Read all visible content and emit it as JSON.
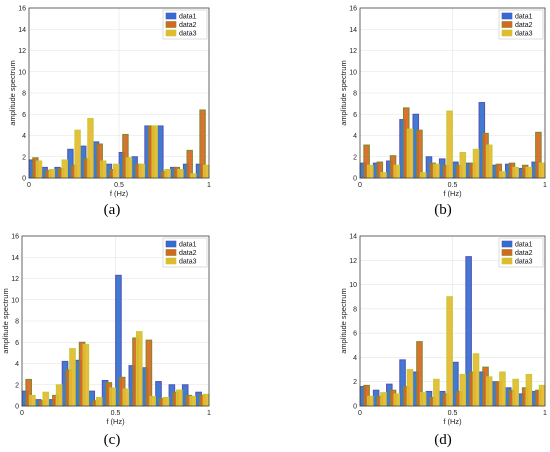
{
  "figure": {
    "panels": [
      {
        "caption": "(a)"
      },
      {
        "caption": "(b)"
      },
      {
        "caption": "(c)"
      },
      {
        "caption": "(d)"
      }
    ]
  },
  "colors": {
    "data1": "#2f6fcf",
    "data2": "#d9661f",
    "data3": "#e6b82e",
    "outline_purple": "#5b4fb5",
    "outline_olive": "#7b8a2a",
    "outline_yellowgreen": "#c2cc33"
  },
  "chart_data": [
    {
      "type": "bar",
      "panel": "(a)",
      "xlabel": "f (Hz)",
      "ylabel": "amplitude spectrum",
      "xlim": [
        0,
        1
      ],
      "ylim": [
        0,
        16
      ],
      "xticks": [
        "0",
        "0.5",
        "1"
      ],
      "yticks": [
        "0",
        "2",
        "4",
        "6",
        "8",
        "10",
        "12",
        "14",
        "16"
      ],
      "grid": true,
      "legend": {
        "placement": "top-right",
        "entries": [
          "data1",
          "data2",
          "data3"
        ]
      },
      "x": [
        0.0,
        0.075,
        0.15,
        0.225,
        0.3,
        0.375,
        0.45,
        0.525,
        0.6,
        0.675,
        0.75,
        0.825,
        0.9,
        0.975
      ],
      "series": [
        {
          "name": "data1",
          "values": [
            1.7,
            1.0,
            1.0,
            2.7,
            3.0,
            3.4,
            1.3,
            2.4,
            2.0,
            4.9,
            4.9,
            1.0,
            1.3,
            1.3
          ]
        },
        {
          "name": "data2",
          "values": [
            1.9,
            0.7,
            0.9,
            1.2,
            1.8,
            3.2,
            0.8,
            4.1,
            1.3,
            4.9,
            0.6,
            1.0,
            2.6,
            6.4
          ]
        },
        {
          "name": "data3",
          "values": [
            1.6,
            0.8,
            1.7,
            4.5,
            5.6,
            1.6,
            1.3,
            1.9,
            1.3,
            4.9,
            0.8,
            0.8,
            0.4,
            1.2
          ]
        }
      ]
    },
    {
      "type": "bar",
      "panel": "(b)",
      "xlabel": "f (Hz)",
      "ylabel": "amplitude spectrum",
      "xlim": [
        0,
        1
      ],
      "ylim": [
        0,
        16
      ],
      "xticks": [
        "0",
        "0.5",
        "1"
      ],
      "yticks": [
        "0",
        "2",
        "4",
        "6",
        "8",
        "10",
        "12",
        "14",
        "16"
      ],
      "grid": true,
      "legend": {
        "placement": "top-right",
        "entries": [
          "data1",
          "data2",
          "data3"
        ]
      },
      "x": [
        0.0,
        0.075,
        0.15,
        0.225,
        0.3,
        0.375,
        0.45,
        0.525,
        0.6,
        0.675,
        0.75,
        0.825,
        0.9,
        0.975
      ],
      "series": [
        {
          "name": "data1",
          "values": [
            1.4,
            1.4,
            1.6,
            5.5,
            6.0,
            2.0,
            1.8,
            1.5,
            1.4,
            7.1,
            1.2,
            1.3,
            0.9,
            1.5
          ]
        },
        {
          "name": "data2",
          "values": [
            3.1,
            1.5,
            2.1,
            6.6,
            4.5,
            1.4,
            1.2,
            1.2,
            1.4,
            4.2,
            1.3,
            1.4,
            1.2,
            4.3
          ]
        },
        {
          "name": "data3",
          "values": [
            1.2,
            0.5,
            1.2,
            4.6,
            0.5,
            1.3,
            6.3,
            2.4,
            2.7,
            3.1,
            0.6,
            1.0,
            1.0,
            1.4
          ]
        }
      ]
    },
    {
      "type": "bar",
      "panel": "(c)",
      "xlabel": "f (Hz)",
      "ylabel": "amplitude spectrum",
      "xlim": [
        0,
        1
      ],
      "ylim": [
        0,
        16
      ],
      "xticks": [
        "0",
        "0.5",
        "1"
      ],
      "yticks": [
        "0",
        "2",
        "4",
        "6",
        "8",
        "10",
        "12",
        "14",
        "16"
      ],
      "grid": true,
      "legend": {
        "placement": "top-right",
        "entries": [
          "data1",
          "data2",
          "data3"
        ]
      },
      "x": [
        0.0,
        0.075,
        0.15,
        0.225,
        0.3,
        0.375,
        0.45,
        0.525,
        0.6,
        0.675,
        0.75,
        0.825,
        0.9,
        0.975
      ],
      "series": [
        {
          "name": "data1",
          "values": [
            1.4,
            0.6,
            0.6,
            4.2,
            4.3,
            1.4,
            2.4,
            12.3,
            3.8,
            3.6,
            2.3,
            2.0,
            2.0,
            1.3
          ]
        },
        {
          "name": "data2",
          "values": [
            2.5,
            0.5,
            1.0,
            3.4,
            6.0,
            0.5,
            2.2,
            2.7,
            6.4,
            6.2,
            0.7,
            1.3,
            1.0,
            1.0
          ]
        },
        {
          "name": "data3",
          "values": [
            1.0,
            1.3,
            2.0,
            5.4,
            5.8,
            0.8,
            1.7,
            1.6,
            7.0,
            0.9,
            0.8,
            1.5,
            0.9,
            1.1
          ]
        }
      ]
    },
    {
      "type": "bar",
      "panel": "(d)",
      "xlabel": "f (Hz)",
      "ylabel": "amplitude spectrum",
      "xlim": [
        0,
        1
      ],
      "ylim": [
        0,
        14
      ],
      "xticks": [
        "0",
        "0.5",
        "1"
      ],
      "yticks": [
        "0",
        "2",
        "4",
        "6",
        "8",
        "10",
        "12",
        "14"
      ],
      "grid": true,
      "legend": {
        "placement": "top-right",
        "entries": [
          "data1",
          "data2",
          "data3"
        ]
      },
      "x": [
        0.0,
        0.075,
        0.15,
        0.225,
        0.3,
        0.375,
        0.45,
        0.525,
        0.6,
        0.675,
        0.75,
        0.825,
        0.9,
        0.975
      ],
      "series": [
        {
          "name": "data1",
          "values": [
            1.6,
            1.3,
            1.8,
            3.8,
            2.8,
            1.2,
            1.2,
            3.6,
            12.3,
            2.8,
            2.0,
            1.5,
            1.0,
            1.2
          ]
        },
        {
          "name": "data2",
          "values": [
            1.7,
            0.8,
            1.3,
            1.6,
            5.3,
            0.7,
            1.0,
            1.2,
            2.8,
            3.2,
            2.0,
            1.3,
            1.5,
            1.3
          ]
        },
        {
          "name": "data3",
          "values": [
            0.8,
            1.1,
            1.0,
            3.0,
            1.1,
            2.2,
            9.0,
            2.6,
            4.3,
            2.4,
            2.8,
            2.2,
            2.6,
            1.7
          ]
        }
      ]
    }
  ]
}
